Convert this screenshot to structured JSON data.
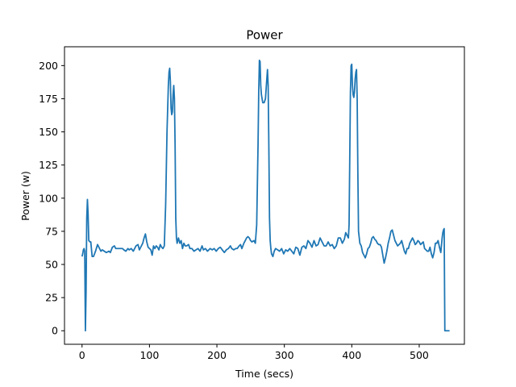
{
  "chart_data": {
    "type": "line",
    "title": "Power",
    "xlabel": "Time (secs)",
    "ylabel": "Power (w)",
    "xlim": [
      -26,
      567
    ],
    "ylim": [
      -10.2,
      214.2
    ],
    "xticks": [
      0,
      100,
      200,
      300,
      400,
      500
    ],
    "yticks": [
      0,
      25,
      50,
      75,
      100,
      125,
      150,
      175,
      200
    ],
    "grid": false,
    "legend": "none",
    "series": [
      {
        "color": "#1f77b4",
        "points": [
          [
            0,
            56
          ],
          [
            1,
            58
          ],
          [
            2,
            61
          ],
          [
            3,
            62
          ],
          [
            4,
            60
          ],
          [
            5,
            0
          ],
          [
            6,
            30
          ],
          [
            7,
            85
          ],
          [
            8,
            99
          ],
          [
            9,
            88
          ],
          [
            10,
            68
          ],
          [
            12,
            67
          ],
          [
            13,
            67
          ],
          [
            15,
            56
          ],
          [
            17,
            56
          ],
          [
            20,
            60
          ],
          [
            23,
            65
          ],
          [
            25,
            63
          ],
          [
            28,
            60
          ],
          [
            30,
            61
          ],
          [
            33,
            60
          ],
          [
            36,
            59
          ],
          [
            40,
            60
          ],
          [
            42,
            59
          ],
          [
            45,
            63
          ],
          [
            48,
            64
          ],
          [
            50,
            62
          ],
          [
            53,
            62
          ],
          [
            56,
            62
          ],
          [
            60,
            62
          ],
          [
            62,
            61
          ],
          [
            65,
            60
          ],
          [
            68,
            62
          ],
          [
            70,
            61
          ],
          [
            73,
            62
          ],
          [
            76,
            60
          ],
          [
            80,
            64
          ],
          [
            83,
            65
          ],
          [
            85,
            61
          ],
          [
            88,
            64
          ],
          [
            90,
            66
          ],
          [
            92,
            70
          ],
          [
            94,
            73
          ],
          [
            96,
            67
          ],
          [
            98,
            63
          ],
          [
            100,
            62
          ],
          [
            102,
            61
          ],
          [
            104,
            57
          ],
          [
            106,
            64
          ],
          [
            108,
            62
          ],
          [
            110,
            64
          ],
          [
            112,
            63
          ],
          [
            114,
            61
          ],
          [
            116,
            65
          ],
          [
            118,
            63
          ],
          [
            120,
            62
          ],
          [
            122,
            64
          ],
          [
            124,
            95
          ],
          [
            126,
            150
          ],
          [
            128,
            185
          ],
          [
            129,
            195
          ],
          [
            130,
            198
          ],
          [
            131,
            188
          ],
          [
            132,
            168
          ],
          [
            133,
            163
          ],
          [
            134,
            165
          ],
          [
            135,
            178
          ],
          [
            136,
            185
          ],
          [
            137,
            175
          ],
          [
            138,
            140
          ],
          [
            139,
            85
          ],
          [
            140,
            70
          ],
          [
            141,
            66
          ],
          [
            143,
            70
          ],
          [
            145,
            66
          ],
          [
            147,
            68
          ],
          [
            149,
            62
          ],
          [
            151,
            66
          ],
          [
            153,
            64
          ],
          [
            155,
            64
          ],
          [
            158,
            65
          ],
          [
            160,
            62
          ],
          [
            163,
            62
          ],
          [
            166,
            60
          ],
          [
            169,
            61
          ],
          [
            172,
            62
          ],
          [
            175,
            60
          ],
          [
            178,
            64
          ],
          [
            180,
            61
          ],
          [
            183,
            62
          ],
          [
            186,
            60
          ],
          [
            190,
            62
          ],
          [
            193,
            61
          ],
          [
            196,
            62
          ],
          [
            199,
            60
          ],
          [
            202,
            62
          ],
          [
            205,
            63
          ],
          [
            208,
            61
          ],
          [
            211,
            59
          ],
          [
            214,
            61
          ],
          [
            217,
            62
          ],
          [
            220,
            64
          ],
          [
            222,
            62
          ],
          [
            225,
            61
          ],
          [
            228,
            62
          ],
          [
            230,
            62
          ],
          [
            233,
            64
          ],
          [
            235,
            65
          ],
          [
            237,
            62
          ],
          [
            240,
            66
          ],
          [
            242,
            68
          ],
          [
            244,
            70
          ],
          [
            246,
            71
          ],
          [
            248,
            70
          ],
          [
            250,
            68
          ],
          [
            252,
            67
          ],
          [
            255,
            68
          ],
          [
            257,
            66
          ],
          [
            259,
            80
          ],
          [
            261,
            140
          ],
          [
            262,
            180
          ],
          [
            263,
            204
          ],
          [
            264,
            203
          ],
          [
            265,
            185
          ],
          [
            266,
            178
          ],
          [
            268,
            172
          ],
          [
            270,
            172
          ],
          [
            272,
            175
          ],
          [
            274,
            190
          ],
          [
            275,
            197
          ],
          [
            276,
            185
          ],
          [
            277,
            140
          ],
          [
            278,
            85
          ],
          [
            279,
            68
          ],
          [
            280,
            62
          ],
          [
            281,
            58
          ],
          [
            283,
            56
          ],
          [
            285,
            60
          ],
          [
            287,
            62
          ],
          [
            290,
            61
          ],
          [
            293,
            60
          ],
          [
            296,
            62
          ],
          [
            299,
            58
          ],
          [
            302,
            61
          ],
          [
            305,
            60
          ],
          [
            308,
            62
          ],
          [
            311,
            60
          ],
          [
            314,
            58
          ],
          [
            317,
            63
          ],
          [
            320,
            62
          ],
          [
            323,
            57
          ],
          [
            326,
            63
          ],
          [
            329,
            64
          ],
          [
            332,
            62
          ],
          [
            335,
            68
          ],
          [
            338,
            66
          ],
          [
            341,
            63
          ],
          [
            344,
            68
          ],
          [
            347,
            64
          ],
          [
            350,
            65
          ],
          [
            353,
            70
          ],
          [
            356,
            67
          ],
          [
            359,
            64
          ],
          [
            362,
            64
          ],
          [
            365,
            67
          ],
          [
            368,
            64
          ],
          [
            371,
            65
          ],
          [
            374,
            62
          ],
          [
            377,
            64
          ],
          [
            380,
            70
          ],
          [
            383,
            70
          ],
          [
            386,
            66
          ],
          [
            389,
            69
          ],
          [
            391,
            74
          ],
          [
            393,
            72
          ],
          [
            395,
            70
          ],
          [
            396,
            80
          ],
          [
            397,
            130
          ],
          [
            398,
            180
          ],
          [
            399,
            200
          ],
          [
            400,
            201
          ],
          [
            401,
            185
          ],
          [
            402,
            178
          ],
          [
            403,
            176
          ],
          [
            404,
            180
          ],
          [
            405,
            190
          ],
          [
            406,
            195
          ],
          [
            407,
            197
          ],
          [
            408,
            175
          ],
          [
            409,
            120
          ],
          [
            410,
            75
          ],
          [
            412,
            66
          ],
          [
            414,
            64
          ],
          [
            416,
            59
          ],
          [
            418,
            57
          ],
          [
            420,
            55
          ],
          [
            422,
            58
          ],
          [
            424,
            62
          ],
          [
            426,
            63
          ],
          [
            428,
            66
          ],
          [
            430,
            70
          ],
          [
            432,
            71
          ],
          [
            434,
            69
          ],
          [
            436,
            68
          ],
          [
            438,
            66
          ],
          [
            440,
            65
          ],
          [
            442,
            65
          ],
          [
            444,
            63
          ],
          [
            446,
            57
          ],
          [
            448,
            51
          ],
          [
            450,
            55
          ],
          [
            452,
            60
          ],
          [
            454,
            66
          ],
          [
            456,
            70
          ],
          [
            458,
            75
          ],
          [
            460,
            76
          ],
          [
            462,
            72
          ],
          [
            464,
            68
          ],
          [
            466,
            66
          ],
          [
            468,
            64
          ],
          [
            470,
            65
          ],
          [
            472,
            66
          ],
          [
            474,
            68
          ],
          [
            476,
            64
          ],
          [
            478,
            60
          ],
          [
            480,
            58
          ],
          [
            482,
            62
          ],
          [
            484,
            62
          ],
          [
            486,
            66
          ],
          [
            488,
            68
          ],
          [
            490,
            70
          ],
          [
            492,
            68
          ],
          [
            494,
            65
          ],
          [
            496,
            66
          ],
          [
            498,
            68
          ],
          [
            500,
            67
          ],
          [
            502,
            65
          ],
          [
            504,
            66
          ],
          [
            506,
            67
          ],
          [
            508,
            62
          ],
          [
            510,
            61
          ],
          [
            512,
            60
          ],
          [
            514,
            60
          ],
          [
            516,
            63
          ],
          [
            518,
            58
          ],
          [
            520,
            55
          ],
          [
            522,
            59
          ],
          [
            524,
            66
          ],
          [
            526,
            66
          ],
          [
            528,
            68
          ],
          [
            530,
            63
          ],
          [
            532,
            59
          ],
          [
            534,
            70
          ],
          [
            535,
            74
          ],
          [
            536,
            76
          ],
          [
            537,
            77
          ],
          [
            538,
            0
          ],
          [
            540,
            0
          ],
          [
            545,
            0
          ]
        ]
      }
    ]
  }
}
